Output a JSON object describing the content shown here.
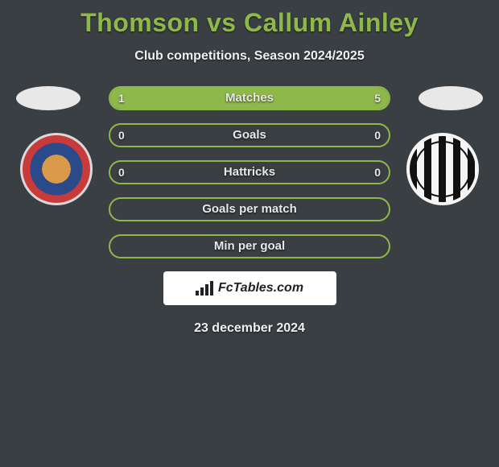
{
  "title": "Thomson vs Callum Ainley",
  "subtitle": "Club competitions, Season 2024/2025",
  "date": "23 december 2024",
  "logo_text": "FcTables.com",
  "colors": {
    "accent": "#8fb84a",
    "background": "#3a3f44",
    "text": "#e8e8e8"
  },
  "bars": [
    {
      "label": "Matches",
      "left": "1",
      "right": "5",
      "left_pct": 16.7,
      "right_pct": 83.3
    },
    {
      "label": "Goals",
      "left": "0",
      "right": "0",
      "left_pct": 0,
      "right_pct": 0
    },
    {
      "label": "Hattricks",
      "left": "0",
      "right": "0",
      "left_pct": 0,
      "right_pct": 0
    },
    {
      "label": "Goals per match",
      "left": "",
      "right": "",
      "left_pct": 0,
      "right_pct": 0
    },
    {
      "label": "Min per goal",
      "left": "",
      "right": "",
      "left_pct": 0,
      "right_pct": 0
    }
  ]
}
